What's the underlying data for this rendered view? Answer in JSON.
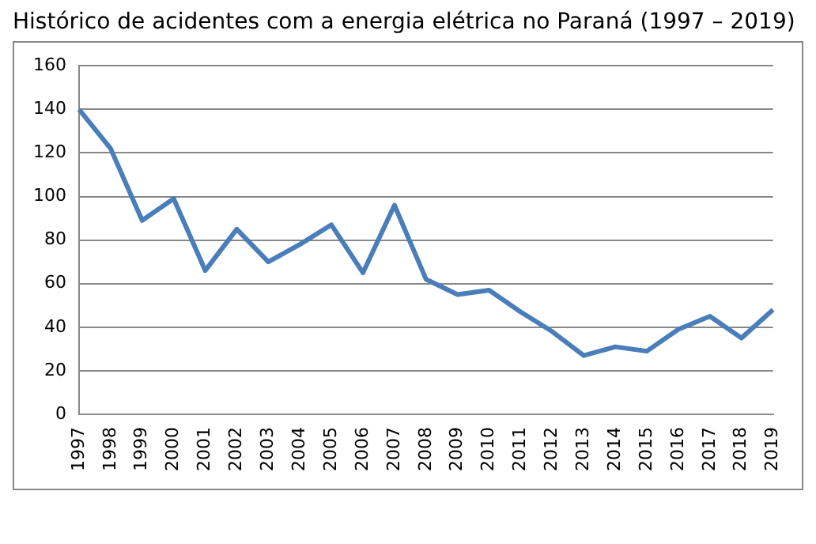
{
  "chart_data": {
    "type": "line",
    "title": "Histórico de acidentes com a energia elétrica no Paraná (1997 – 2019)",
    "categories": [
      "1997",
      "1998",
      "1999",
      "2000",
      "2001",
      "2002",
      "2003",
      "2004",
      "2005",
      "2006",
      "2007",
      "2008",
      "2009",
      "2010",
      "2011",
      "2012",
      "2013",
      "2014",
      "2015",
      "2016",
      "2017",
      "2018",
      "2019"
    ],
    "series": [
      {
        "color": "#4a7ebb",
        "values": [
          140,
          122,
          89,
          99,
          66,
          85,
          70,
          78,
          87,
          65,
          96,
          62,
          55,
          57,
          47,
          38,
          27,
          31,
          29,
          39,
          45,
          35,
          48
        ]
      }
    ],
    "ylim": [
      0,
      160
    ],
    "yticks": [
      0,
      20,
      40,
      60,
      80,
      100,
      120,
      140,
      160
    ],
    "grid": "y",
    "legend": false,
    "marker": "none",
    "line_style": "solid"
  }
}
